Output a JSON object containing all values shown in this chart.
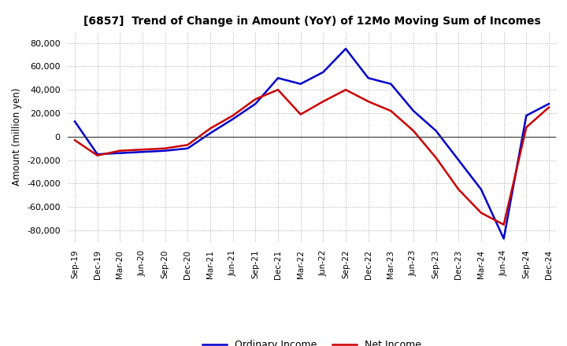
{
  "title": "[6857]  Trend of Change in Amount (YoY) of 12Mo Moving Sum of Incomes",
  "ylabel": "Amount (million yen)",
  "ylim": [
    -90000,
    90000
  ],
  "yticks": [
    -80000,
    -60000,
    -40000,
    -20000,
    0,
    20000,
    40000,
    60000,
    80000
  ],
  "background_color": "#ffffff",
  "grid_color": "#aaaaaa",
  "dates": [
    "Sep-19",
    "Dec-19",
    "Mar-20",
    "Jun-20",
    "Sep-20",
    "Dec-20",
    "Mar-21",
    "Jun-21",
    "Sep-21",
    "Dec-21",
    "Mar-22",
    "Jun-22",
    "Sep-22",
    "Dec-22",
    "Mar-23",
    "Jun-23",
    "Sep-23",
    "Dec-23",
    "Mar-24",
    "Jun-24",
    "Sep-24",
    "Dec-24"
  ],
  "ordinary_income": [
    13000,
    -15000,
    -14000,
    -13000,
    -12000,
    -10000,
    3000,
    15000,
    28000,
    50000,
    45000,
    55000,
    75000,
    50000,
    45000,
    22000,
    5000,
    -20000,
    -45000,
    -87000,
    18000,
    28000
  ],
  "net_income": [
    -3000,
    -16000,
    -12000,
    -11000,
    -10000,
    -7000,
    7000,
    18000,
    32000,
    40000,
    19000,
    30000,
    40000,
    30000,
    22000,
    5000,
    -18000,
    -45000,
    -65000,
    -75000,
    8000,
    25000
  ],
  "ordinary_color": "#0000cc",
  "net_color": "#cc0000",
  "line_width": 1.8
}
